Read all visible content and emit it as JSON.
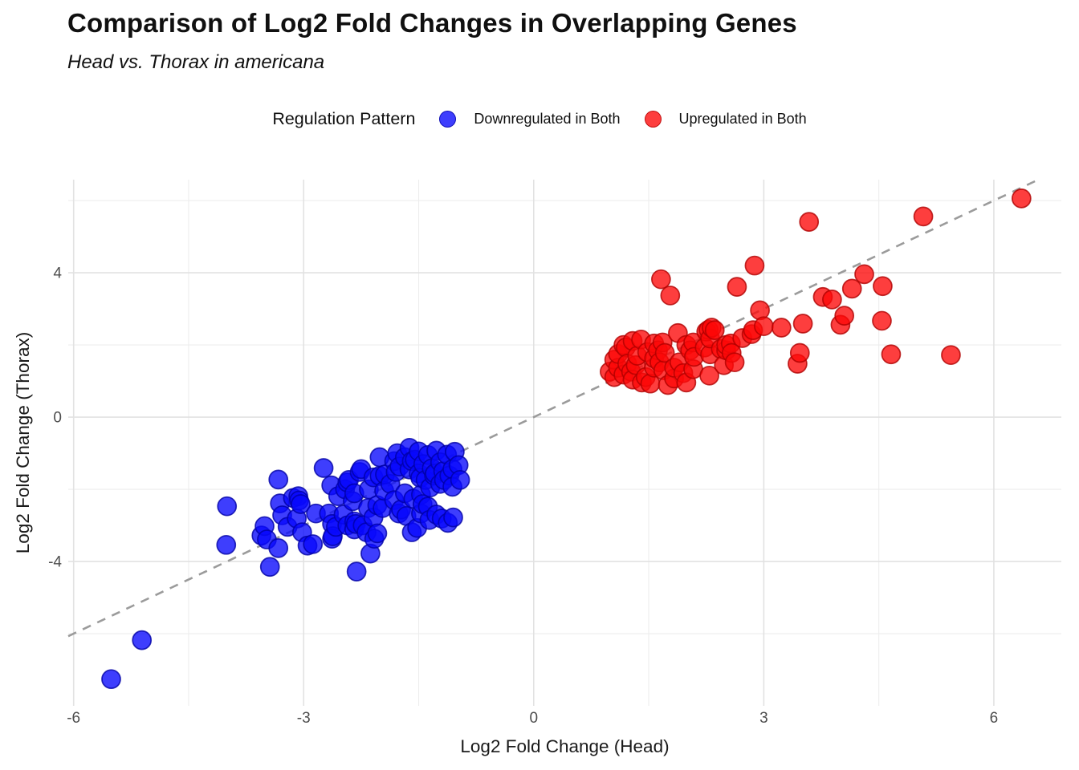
{
  "title": "Comparison of Log2 Fold Changes in Overlapping Genes",
  "subtitle": "Head vs. Thorax in americana",
  "legend": {
    "title": "Regulation Pattern",
    "items": [
      {
        "label": "Downregulated in Both",
        "fill": "rgba(8,8,252,0.78)",
        "stroke": "rgba(0,0,165,0.8)"
      },
      {
        "label": "Upregulated in Both",
        "fill": "rgba(252,8,8,0.78)",
        "stroke": "rgba(175,0,0,0.8)"
      }
    ]
  },
  "chart_data": {
    "type": "scatter",
    "title": "Comparison of Log2 Fold Changes in Overlapping Genes",
    "subtitle": "Head vs. Thorax in americana",
    "xlabel": "Log2 Fold Change (Head)",
    "ylabel": "Log2 Fold Change (Thorax)",
    "xlim": [
      -6.07,
      6.88
    ],
    "ylim": [
      -8.0,
      6.58
    ],
    "x_major_ticks": [
      -6,
      -3,
      0,
      3,
      6
    ],
    "x_minor_ticks": [
      -4.5,
      -1.5,
      1.5,
      4.5
    ],
    "y_major_ticks": [
      -4,
      0,
      4
    ],
    "y_minor_ticks": [
      -6,
      -2,
      2,
      6
    ],
    "grid": true,
    "legend_position": "top",
    "identity_line": {
      "slope": 1,
      "intercept": 0,
      "style": "dashed",
      "color": "#9B9B9B",
      "width": 2.6,
      "dash": [
        11,
        9
      ]
    },
    "style": {
      "grid_major_color": "#E2E2E2",
      "grid_minor_color": "#EDEDED",
      "tick_label_color": "#4D4D4D",
      "axis_title_color": "#1A1A1A",
      "point_radius": 11.5
    },
    "series": [
      {
        "name": "Downregulated in Both",
        "fill": "rgba(8,8,252,0.78)",
        "stroke": "rgba(0,0,165,0.8)",
        "points": [
          [
            -5.51,
            -7.26
          ],
          [
            -5.11,
            -6.18
          ],
          [
            -4.01,
            -3.54
          ],
          [
            -4.0,
            -2.47
          ],
          [
            -3.55,
            -3.28
          ],
          [
            -3.51,
            -3.02
          ],
          [
            -3.48,
            -3.39
          ],
          [
            -3.44,
            -4.15
          ],
          [
            -3.33,
            -1.73
          ],
          [
            -3.33,
            -3.63
          ],
          [
            -3.31,
            -2.39
          ],
          [
            -3.28,
            -2.72
          ],
          [
            -3.21,
            -3.04
          ],
          [
            -3.14,
            -2.24
          ],
          [
            -3.09,
            -2.81
          ],
          [
            -3.07,
            -2.19
          ],
          [
            -3.06,
            -2.31
          ],
          [
            -3.04,
            -2.41
          ],
          [
            -3.02,
            -3.19
          ],
          [
            -2.95,
            -3.56
          ],
          [
            -2.88,
            -3.52
          ],
          [
            -2.84,
            -2.67
          ],
          [
            -2.74,
            -1.41
          ],
          [
            -2.67,
            -2.67
          ],
          [
            -2.64,
            -1.89
          ],
          [
            -2.63,
            -2.96
          ],
          [
            -2.63,
            -3.37
          ],
          [
            -2.62,
            -3.3
          ],
          [
            -2.58,
            -3.04
          ],
          [
            -2.55,
            -2.19
          ],
          [
            -2.48,
            -2.7
          ],
          [
            -2.46,
            -2.0
          ],
          [
            -2.43,
            -1.81
          ],
          [
            -2.43,
            -3.0
          ],
          [
            -2.41,
            -1.74
          ],
          [
            -2.36,
            -2.33
          ],
          [
            -2.34,
            -2.11
          ],
          [
            -2.34,
            -2.89
          ],
          [
            -2.34,
            -3.11
          ],
          [
            -2.32,
            -2.96
          ],
          [
            -2.31,
            -4.28
          ],
          [
            -2.27,
            -1.52
          ],
          [
            -2.25,
            -1.44
          ],
          [
            -2.23,
            -3.0
          ],
          [
            -2.18,
            -3.19
          ],
          [
            -2.16,
            -2.52
          ],
          [
            -2.15,
            -2.0
          ],
          [
            -2.13,
            -3.78
          ],
          [
            -2.09,
            -1.67
          ],
          [
            -2.09,
            -2.78
          ],
          [
            -2.08,
            -3.37
          ],
          [
            -2.04,
            -2.44
          ],
          [
            -2.04,
            -3.22
          ],
          [
            -2.01,
            -1.11
          ],
          [
            -2.01,
            -1.63
          ],
          [
            -1.97,
            -2.52
          ],
          [
            -1.95,
            -2.04
          ],
          [
            -1.94,
            -1.59
          ],
          [
            -1.87,
            -1.85
          ],
          [
            -1.82,
            -1.22
          ],
          [
            -1.82,
            -2.3
          ],
          [
            -1.8,
            -1.52
          ],
          [
            -1.78,
            -1.0
          ],
          [
            -1.76,
            -2.67
          ],
          [
            -1.75,
            -1.37
          ],
          [
            -1.73,
            -2.56
          ],
          [
            -1.68,
            -1.11
          ],
          [
            -1.68,
            -2.11
          ],
          [
            -1.66,
            -2.74
          ],
          [
            -1.62,
            -0.85
          ],
          [
            -1.62,
            -1.45
          ],
          [
            -1.59,
            -1.22
          ],
          [
            -1.59,
            -3.19
          ],
          [
            -1.57,
            -2.26
          ],
          [
            -1.55,
            -1.18
          ],
          [
            -1.52,
            -3.07
          ],
          [
            -1.5,
            -0.95
          ],
          [
            -1.5,
            -1.56
          ],
          [
            -1.48,
            -1.68
          ],
          [
            -1.47,
            -2.15
          ],
          [
            -1.47,
            -2.67
          ],
          [
            -1.45,
            -2.41
          ],
          [
            -1.44,
            -1.3
          ],
          [
            -1.41,
            -1.74
          ],
          [
            -1.38,
            -1.05
          ],
          [
            -1.38,
            -2.48
          ],
          [
            -1.36,
            -2.85
          ],
          [
            -1.35,
            -1.95
          ],
          [
            -1.33,
            -1.42
          ],
          [
            -1.3,
            -1.62
          ],
          [
            -1.29,
            -1.56
          ],
          [
            -1.27,
            -0.93
          ],
          [
            -1.27,
            -2.7
          ],
          [
            -1.22,
            -1.25
          ],
          [
            -1.22,
            -1.85
          ],
          [
            -1.2,
            -2.81
          ],
          [
            -1.18,
            -1.5
          ],
          [
            -1.17,
            -1.74
          ],
          [
            -1.13,
            -1.04
          ],
          [
            -1.12,
            -2.93
          ],
          [
            -1.1,
            -1.62
          ],
          [
            -1.06,
            -1.44
          ],
          [
            -1.06,
            -1.93
          ],
          [
            -1.05,
            -2.78
          ],
          [
            -1.03,
            -0.96
          ],
          [
            -0.98,
            -1.33
          ],
          [
            -0.96,
            -1.74
          ]
        ]
      },
      {
        "name": "Upregulated in Both",
        "fill": "rgba(252,8,8,0.78)",
        "stroke": "rgba(175,0,0,0.8)",
        "points": [
          [
            0.99,
            1.26
          ],
          [
            1.05,
            1.11
          ],
          [
            1.05,
            1.59
          ],
          [
            1.1,
            1.37
          ],
          [
            1.1,
            1.75
          ],
          [
            1.17,
            1.18
          ],
          [
            1.17,
            2.0
          ],
          [
            1.2,
            1.93
          ],
          [
            1.22,
            1.48
          ],
          [
            1.27,
            1.26
          ],
          [
            1.29,
            1.04
          ],
          [
            1.29,
            2.11
          ],
          [
            1.33,
            1.44
          ],
          [
            1.35,
            1.7
          ],
          [
            1.4,
            2.15
          ],
          [
            1.41,
            0.96
          ],
          [
            1.46,
            1.11
          ],
          [
            1.48,
            1.8
          ],
          [
            1.52,
            0.93
          ],
          [
            1.57,
            1.37
          ],
          [
            1.57,
            1.63
          ],
          [
            1.57,
            2.04
          ],
          [
            1.62,
            1.85
          ],
          [
            1.64,
            1.52
          ],
          [
            1.66,
            3.82
          ],
          [
            1.68,
            2.07
          ],
          [
            1.69,
            1.3
          ],
          [
            1.71,
            1.78
          ],
          [
            1.75,
            0.89
          ],
          [
            1.78,
            3.37
          ],
          [
            1.83,
            1.07
          ],
          [
            1.83,
            1.37
          ],
          [
            1.88,
            2.33
          ],
          [
            1.9,
            1.52
          ],
          [
            1.95,
            1.22
          ],
          [
            1.99,
            0.96
          ],
          [
            1.99,
            2.0
          ],
          [
            2.04,
            1.85
          ],
          [
            2.08,
            1.33
          ],
          [
            2.08,
            2.07
          ],
          [
            2.09,
            1.67
          ],
          [
            2.23,
            1.93
          ],
          [
            2.25,
            2.37
          ],
          [
            2.28,
            2.42
          ],
          [
            2.29,
            1.15
          ],
          [
            2.3,
            1.74
          ],
          [
            2.3,
            2.18
          ],
          [
            2.32,
            2.48
          ],
          [
            2.36,
            2.41
          ],
          [
            2.44,
            1.89
          ],
          [
            2.48,
            1.44
          ],
          [
            2.51,
            1.85
          ],
          [
            2.51,
            2.0
          ],
          [
            2.57,
            2.04
          ],
          [
            2.58,
            1.78
          ],
          [
            2.62,
            1.52
          ],
          [
            2.65,
            3.61
          ],
          [
            2.72,
            2.19
          ],
          [
            2.84,
            2.3
          ],
          [
            2.86,
            2.41
          ],
          [
            2.88,
            4.2
          ],
          [
            2.95,
            2.96
          ],
          [
            3.0,
            2.52
          ],
          [
            3.23,
            2.48
          ],
          [
            3.44,
            1.48
          ],
          [
            3.47,
            1.78
          ],
          [
            3.51,
            2.59
          ],
          [
            3.59,
            5.41
          ],
          [
            3.77,
            3.33
          ],
          [
            3.89,
            3.26
          ],
          [
            4.0,
            2.56
          ],
          [
            4.05,
            2.81
          ],
          [
            4.15,
            3.56
          ],
          [
            4.31,
            3.96
          ],
          [
            4.54,
            2.67
          ],
          [
            4.55,
            3.63
          ],
          [
            4.66,
            1.74
          ],
          [
            5.08,
            5.56
          ],
          [
            5.44,
            1.72
          ],
          [
            6.36,
            6.06
          ]
        ]
      }
    ]
  }
}
